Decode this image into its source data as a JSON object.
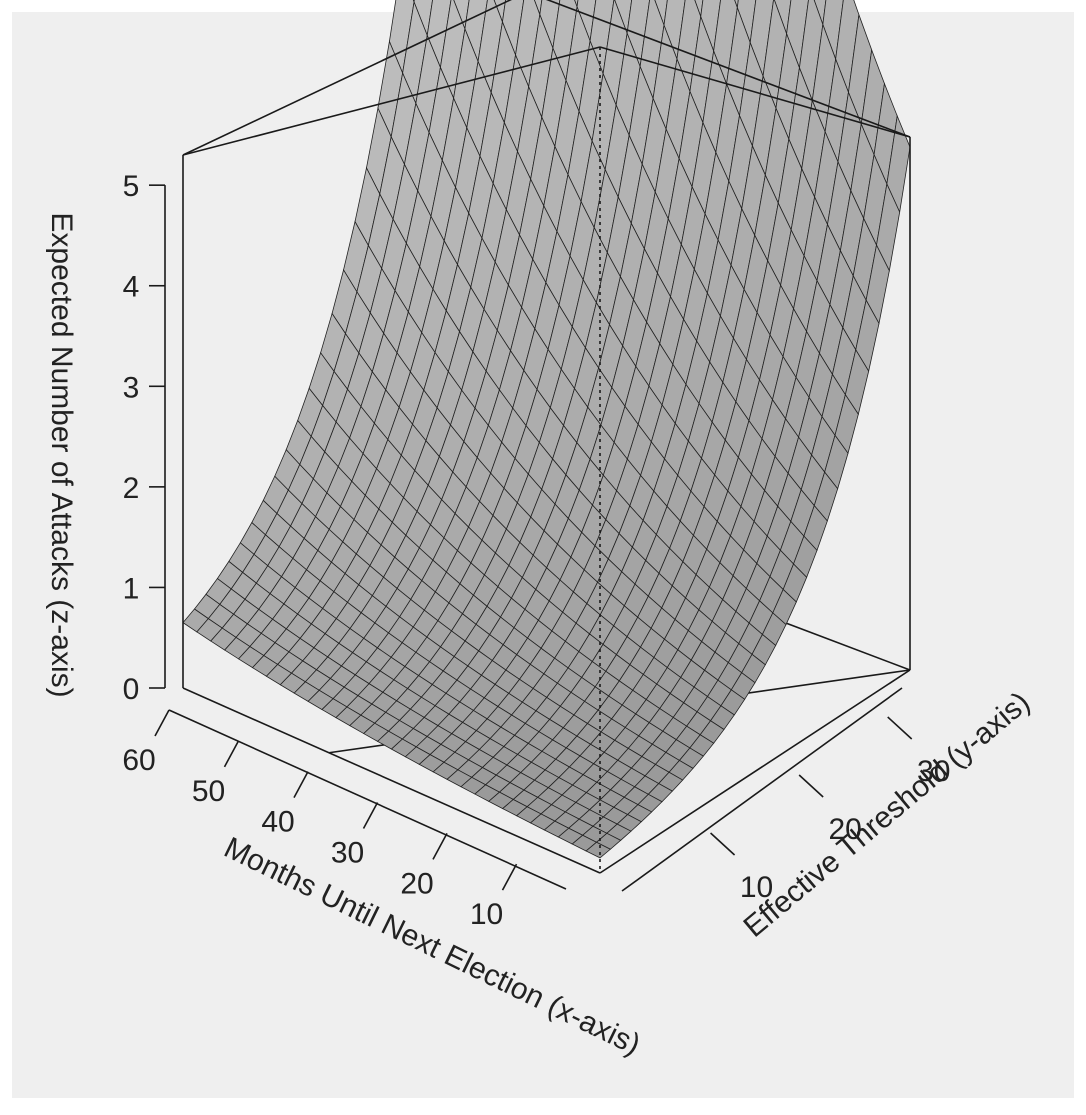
{
  "chart_data": {
    "type": "surface",
    "xlabel": "Months Until Next Election  (x-axis)",
    "ylabel": "Effective Threshold (y-axis)",
    "zlabel": "Expected Number of Attacks (z-axis)",
    "x_ticks": [
      "60",
      "50",
      "40",
      "30",
      "20",
      "10"
    ],
    "y_ticks": [
      "10",
      "20",
      "30"
    ],
    "z_ticks": [
      "0",
      "1",
      "2",
      "3",
      "4",
      "5"
    ],
    "xlim": [
      0,
      60
    ],
    "ylim": [
      0,
      35
    ],
    "zlim": [
      0,
      5.3
    ],
    "grid_x_steps": 30,
    "grid_y_steps": 30,
    "surface_corners": [
      {
        "x": 60,
        "y": 0,
        "z": 0.65
      },
      {
        "x": 0,
        "y": 0,
        "z": 0.15
      },
      {
        "x": 0,
        "y": 35,
        "z": 5.2
      },
      {
        "x": 60,
        "y": 35,
        "z": 3.0
      }
    ],
    "colors": {
      "background": "#efefef",
      "surface_light": "#f2f2f2",
      "surface_dark": "#9a9a9a",
      "mesh": "#222222"
    }
  }
}
